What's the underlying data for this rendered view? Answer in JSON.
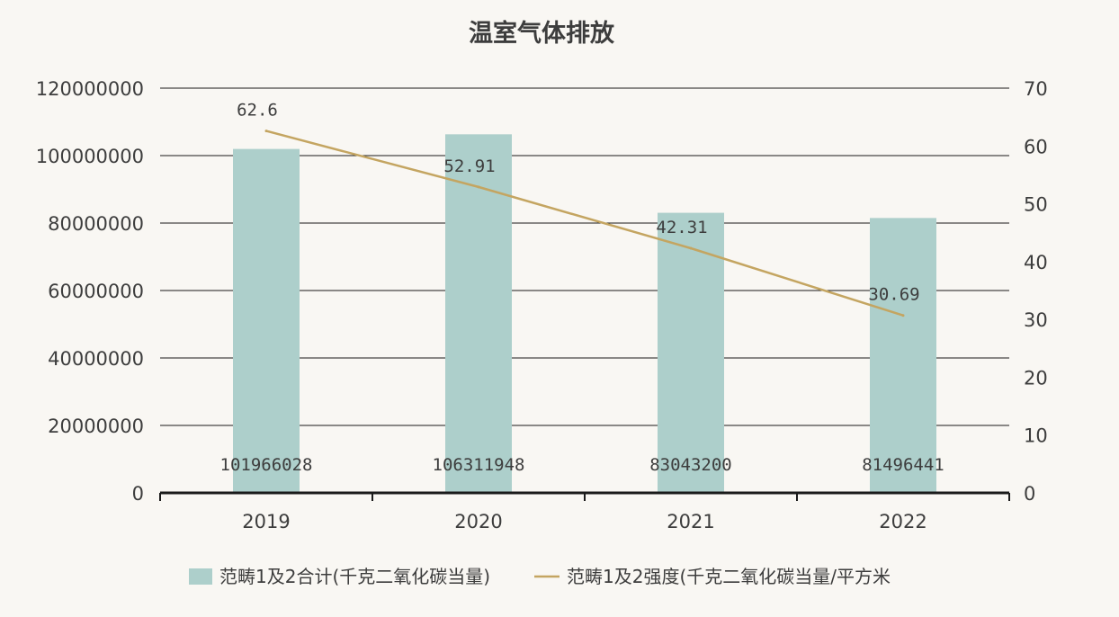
{
  "chart_data": {
    "type": "bar",
    "title": "温室气体排放",
    "categories": [
      "2019",
      "2020",
      "2021",
      "2022"
    ],
    "series": [
      {
        "name": "范畴1及2合计(千克二氧化碳当量)",
        "type": "bar",
        "axis": "left",
        "values": [
          101966028,
          106311948,
          83043200,
          81496441
        ],
        "labels": [
          "101966028",
          "106311948",
          "83043200",
          "81496441"
        ],
        "color": "#adcfcb"
      },
      {
        "name": "范畴1及2强度(千克二氧化碳当量/平方米",
        "type": "line",
        "axis": "right",
        "values": [
          62.6,
          52.91,
          42.31,
          30.69
        ],
        "labels": [
          "62.6",
          "52.91",
          "42.31",
          "30.69"
        ],
        "color": "#c4a561"
      }
    ],
    "y_left": {
      "range": [
        0,
        120000000
      ],
      "ticks": [
        "0",
        "20000000",
        "40000000",
        "60000000",
        "80000000",
        "100000000",
        "120000000"
      ]
    },
    "y_right": {
      "range": [
        0,
        70
      ],
      "ticks": [
        "0",
        "10",
        "20",
        "30",
        "40",
        "50",
        "60",
        "70"
      ]
    },
    "grid": true,
    "legend_position": "bottom"
  }
}
